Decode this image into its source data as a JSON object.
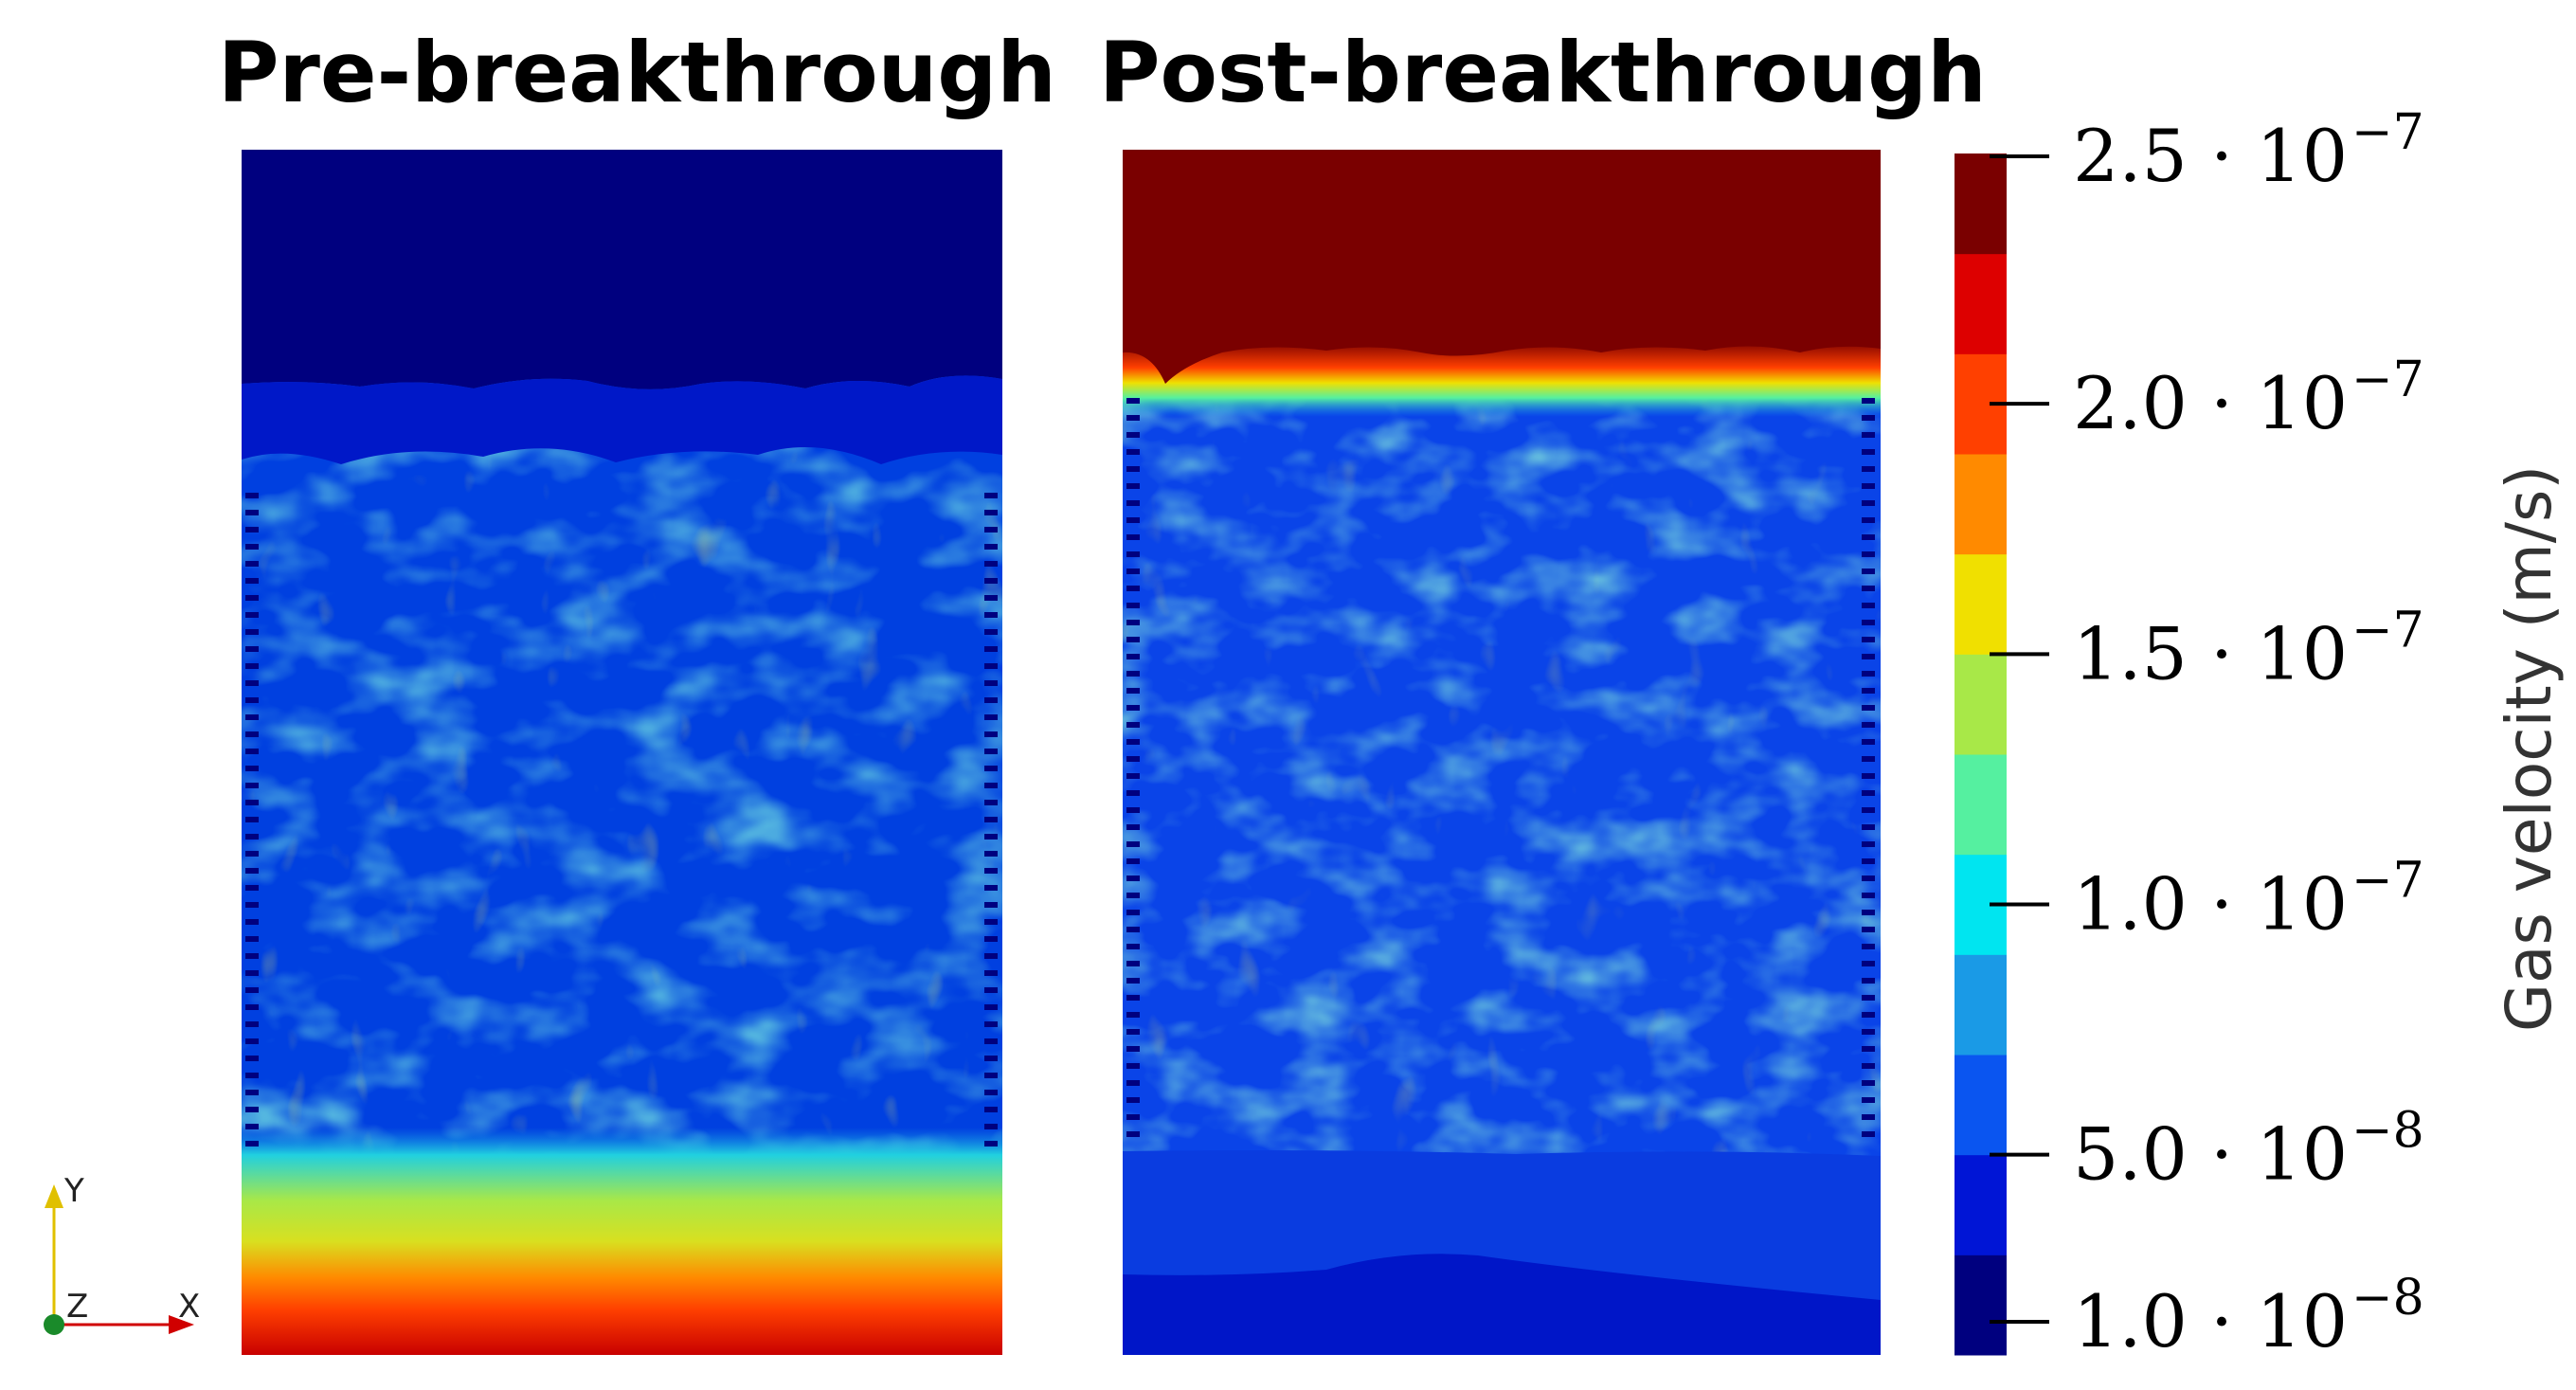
{
  "chart_data": {
    "type": "heatmap",
    "panels": [
      {
        "title": "Pre-breakthrough",
        "top_region": "low velocity (about 1.0e-8)",
        "bottom_region": "high velocity (about 2.5e-7)"
      },
      {
        "title": "Post-breakthrough",
        "top_region": "high velocity (about 2.5e-7)",
        "bottom_region": "low velocity (about 3.0e-8)"
      }
    ],
    "colorbar": {
      "title": "Gas velocity (m/s)",
      "range": [
        1e-08,
        2.5e-07
      ],
      "colors": [
        "#00007f",
        "#0015d6",
        "#0a55f0",
        "#1a9ae6",
        "#00e5f0",
        "#55f0a0",
        "#a8e848",
        "#f0e000",
        "#ff8a00",
        "#ff4000",
        "#dd0000",
        "#7a0000"
      ],
      "ticks": [
        {
          "value": 2.5e-07,
          "mantissa": "2.5",
          "exponent": "−7"
        },
        {
          "value": 2e-07,
          "mantissa": "2.0",
          "exponent": "−7"
        },
        {
          "value": 1.5e-07,
          "mantissa": "1.5",
          "exponent": "−7"
        },
        {
          "value": 1e-07,
          "mantissa": "1.0",
          "exponent": "−7"
        },
        {
          "value": 5e-08,
          "mantissa": "5.0",
          "exponent": "−8"
        },
        {
          "value": 1e-08,
          "mantissa": "1.0",
          "exponent": "−8"
        }
      ],
      "multiplier": "· 10"
    },
    "axes_triad": {
      "y_label": "Y",
      "z_label": "Z",
      "x_label": "X"
    }
  }
}
